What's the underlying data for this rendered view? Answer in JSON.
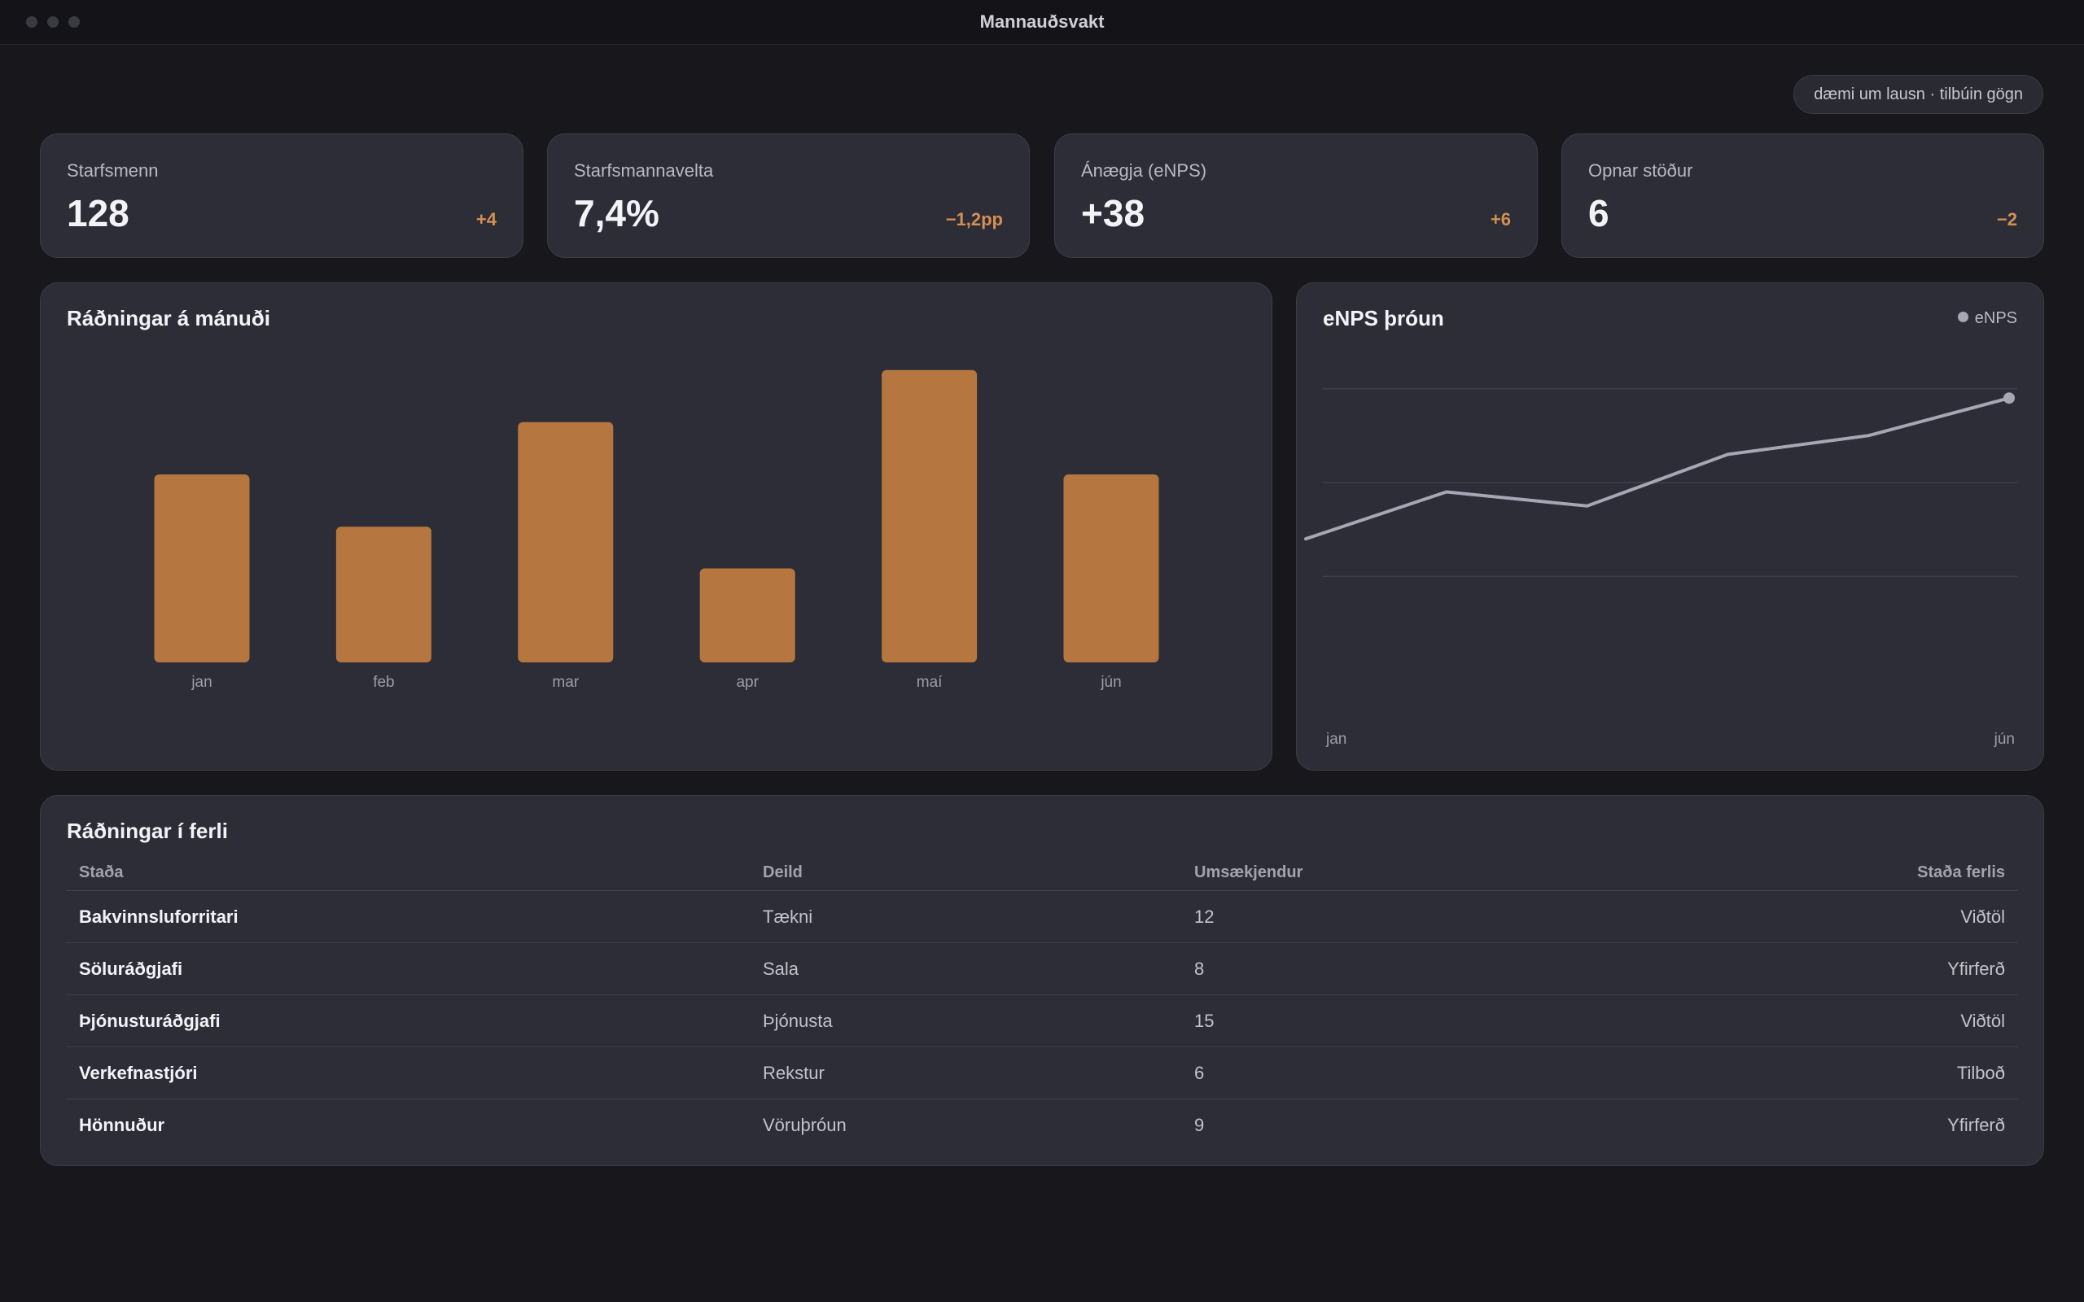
{
  "window": {
    "title": "Mannauðsvakt"
  },
  "badge": "dæmi um lausn · tilbúin gögn",
  "kpis": [
    {
      "label": "Starfsmenn",
      "value": "128",
      "delta": "+4"
    },
    {
      "label": "Starfsmannavelta",
      "value": "7,4%",
      "delta": "−1,2pp"
    },
    {
      "label": "Ánægja (eNPS)",
      "value": "+38",
      "delta": "+6"
    },
    {
      "label": "Opnar stöður",
      "value": "6",
      "delta": "−2"
    }
  ],
  "hires_chart": {
    "title": "Ráðningar á mánuði"
  },
  "enps_chart": {
    "title": "eNPS þróun",
    "legend": "eNPS",
    "x_start_label": "jan",
    "x_end_label": "jún"
  },
  "pipeline": {
    "title": "Ráðningar í ferli",
    "columns": [
      "Staða",
      "Deild",
      "Umsækjendur",
      "Staða ferlis"
    ],
    "rows": [
      [
        "Bakvinnsluforritari",
        "Tækni",
        "12",
        "Viðtöl"
      ],
      [
        "Söluráðgjafi",
        "Sala",
        "8",
        "Yfirferð"
      ],
      [
        "Þjónusturáðgjafi",
        "Þjónusta",
        "15",
        "Viðtöl"
      ],
      [
        "Verkefnastjóri",
        "Rekstur",
        "6",
        "Tilboð"
      ],
      [
        "Hönnuður",
        "Vöruþróun",
        "9",
        "Yfirferð"
      ]
    ]
  },
  "colors": {
    "accent": "#b5773f",
    "line": "#a6a6b4",
    "delta": "#d48f52"
  },
  "chart_data": [
    {
      "type": "bar",
      "title": "Ráðningar á mánuði",
      "categories": [
        "jan",
        "feb",
        "mar",
        "apr",
        "maí",
        "jún"
      ],
      "values": [
        9,
        6.5,
        11.5,
        4.5,
        14,
        9
      ],
      "ylim": [
        0,
        15
      ],
      "grid": false
    },
    {
      "type": "line",
      "title": "eNPS þróun",
      "x": [
        "jan",
        "feb",
        "mar",
        "apr",
        "maí",
        "jún"
      ],
      "x_tick_labels_shown": [
        "jan",
        "jún"
      ],
      "series": [
        {
          "name": "eNPS",
          "values": [
            8,
            18,
            15,
            26,
            30,
            38
          ]
        }
      ],
      "ylim": [
        -10,
        50
      ],
      "grid": true,
      "legend": "top-right"
    }
  ]
}
